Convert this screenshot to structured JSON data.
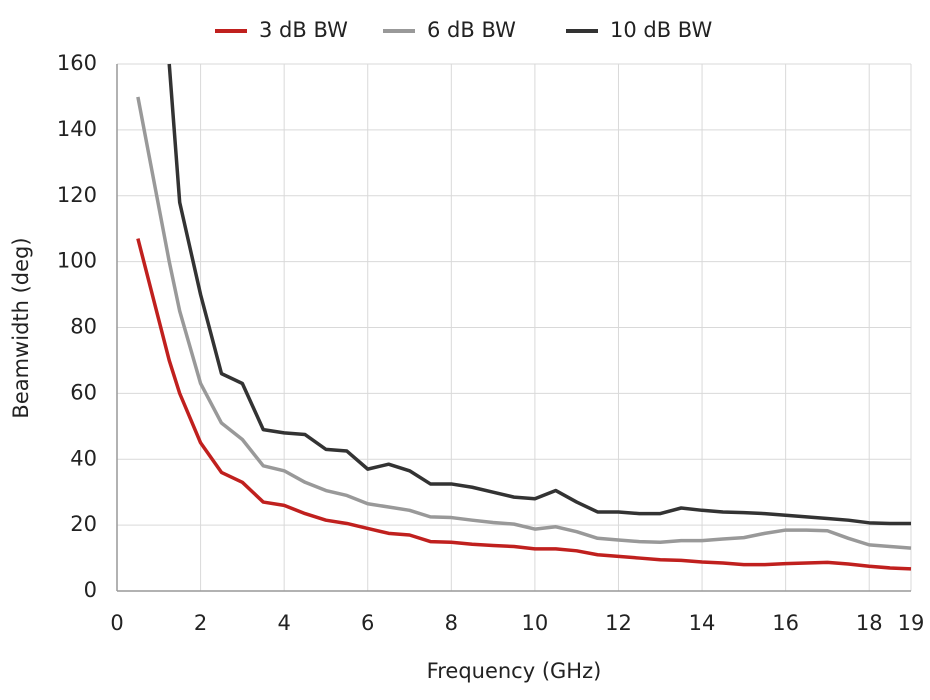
{
  "chart_data": {
    "type": "line",
    "x_label": "Frequency (GHz)",
    "y_label": "Beamwidth (deg)",
    "x": [
      0.5,
      1.25,
      1.5,
      2,
      2.5,
      3,
      3.5,
      4,
      4.5,
      5,
      5.5,
      6,
      6.5,
      7,
      7.5,
      8,
      8.5,
      9,
      9.5,
      10,
      10.5,
      11,
      11.5,
      12,
      12.5,
      13,
      13.5,
      14,
      14.5,
      15,
      15.5,
      16,
      16.5,
      17,
      17.5,
      18,
      18.5,
      19
    ],
    "series": [
      {
        "name": "3 dB BW",
        "color": "#c0201e",
        "values": [
          107,
          70,
          60,
          45,
          36,
          33,
          27,
          26,
          23.5,
          21.5,
          20.5,
          19,
          17.5,
          17,
          15,
          14.8,
          14.2,
          13.8,
          13.5,
          12.8,
          12.8,
          12.2,
          11,
          10.5,
          10,
          9.5,
          9.3,
          8.8,
          8.5,
          8,
          8,
          8.3,
          8.5,
          8.7,
          8.2,
          7.5,
          7,
          6.7
        ]
      },
      {
        "name": "6 dB BW",
        "color": "#999999",
        "values": [
          150,
          100,
          85,
          63,
          51,
          46,
          38,
          36.5,
          33,
          30.5,
          29,
          26.5,
          25.5,
          24.5,
          22.5,
          22.3,
          21.5,
          20.8,
          20.3,
          18.8,
          19.5,
          18,
          16,
          15.5,
          15,
          14.8,
          15.3,
          15.3,
          15.8,
          16.2,
          17.5,
          18.5,
          18.5,
          18.3,
          16,
          14,
          13.5,
          13
        ]
      },
      {
        "name": "10 dB BW",
        "color": "#333333",
        "values": [
          null,
          160,
          118,
          90,
          66,
          63,
          49,
          48,
          47.5,
          43,
          42.5,
          37,
          38.5,
          36.5,
          32.5,
          32.5,
          31.5,
          30,
          28.5,
          28,
          30.5,
          27,
          24,
          24,
          23.5,
          23.5,
          25.2,
          24.5,
          24,
          23.8,
          23.5,
          23,
          22.5,
          22,
          21.5,
          20.7,
          20.5,
          20.5
        ]
      }
    ],
    "xlim": [
      0,
      19
    ],
    "xticks": [
      0,
      2,
      4,
      6,
      8,
      10,
      12,
      14,
      16,
      18,
      19
    ],
    "ylim": [
      0,
      160
    ],
    "yticks": [
      0,
      20,
      40,
      60,
      80,
      100,
      120,
      140,
      160
    ],
    "grid": true
  }
}
